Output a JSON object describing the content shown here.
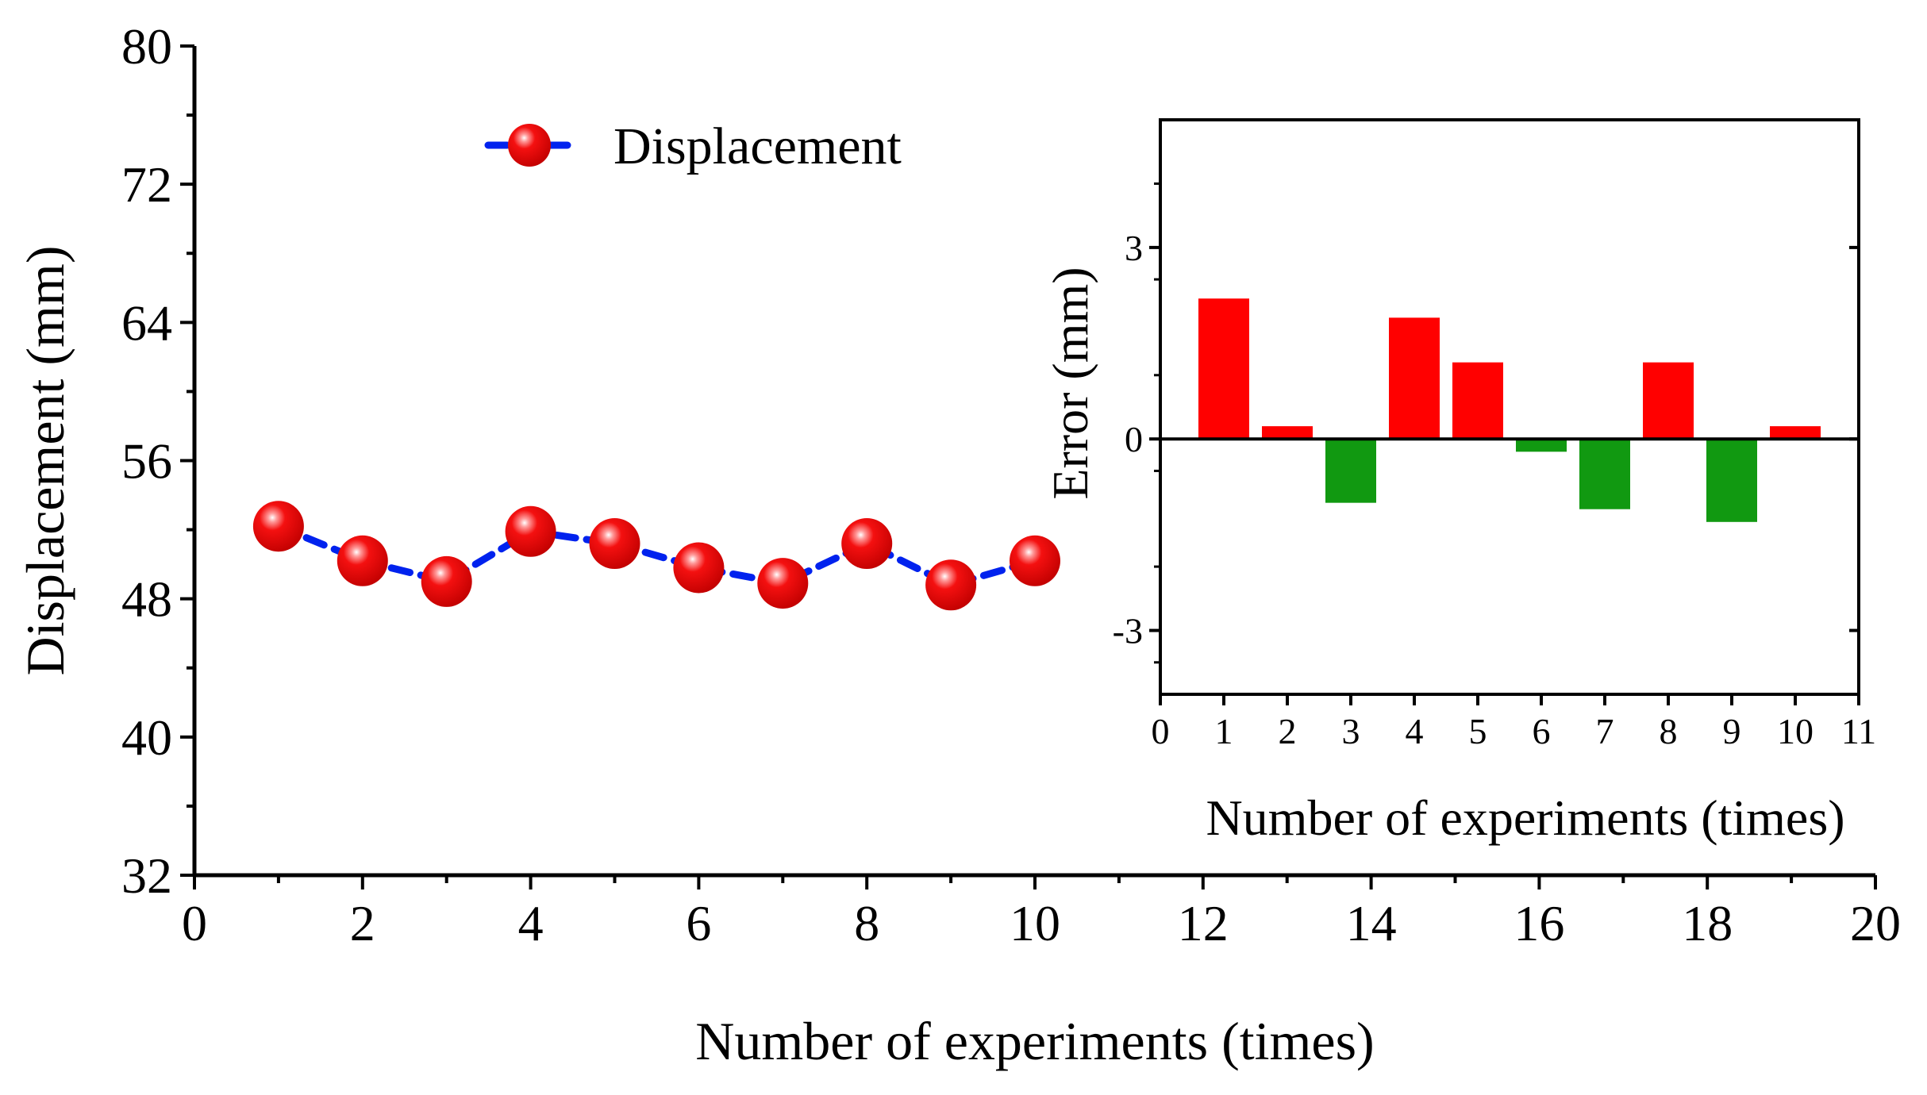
{
  "colors": {
    "line": "#0022ee",
    "marker": "#ee0000",
    "bar_positive": "#ff0000",
    "bar_negative": "#119911",
    "axis": "#000000"
  },
  "chart_data": [
    {
      "id": "main",
      "type": "line",
      "xlabel": "Number of experiments (times)",
      "ylabel": "Displacement (mm)",
      "xlim": [
        0,
        20
      ],
      "ylim": [
        32,
        80
      ],
      "xticks": [
        "0",
        "2",
        "4",
        "6",
        "8",
        "10",
        "12",
        "14",
        "16",
        "18",
        "20"
      ],
      "yticks": [
        "32",
        "40",
        "48",
        "56",
        "64",
        "72",
        "80"
      ],
      "grid": false,
      "legend_position": "top-center",
      "series": [
        {
          "name": "Displacement",
          "line_style": "dashed",
          "marker": "sphere",
          "x": [
            1,
            2,
            3,
            4,
            5,
            6,
            7,
            8,
            9,
            10
          ],
          "y": [
            52.2,
            50.2,
            49.0,
            51.9,
            51.2,
            49.8,
            48.9,
            51.2,
            48.8,
            50.2
          ]
        }
      ]
    },
    {
      "id": "inset",
      "type": "bar",
      "xlabel": "Number of experiments (times)",
      "ylabel": "Error (mm)",
      "xlim": [
        0,
        11
      ],
      "ylim": [
        -4,
        5
      ],
      "xticks": [
        "0",
        "1",
        "2",
        "3",
        "4",
        "5",
        "6",
        "7",
        "8",
        "9",
        "10",
        "11"
      ],
      "yticks": [
        "-3",
        "0",
        "3"
      ],
      "grid": false,
      "categories": [
        1,
        2,
        3,
        4,
        5,
        6,
        7,
        8,
        9,
        10
      ],
      "values": [
        2.2,
        0.2,
        -1.0,
        1.9,
        1.2,
        -0.2,
        -1.1,
        1.2,
        -1.3,
        0.2
      ]
    }
  ]
}
